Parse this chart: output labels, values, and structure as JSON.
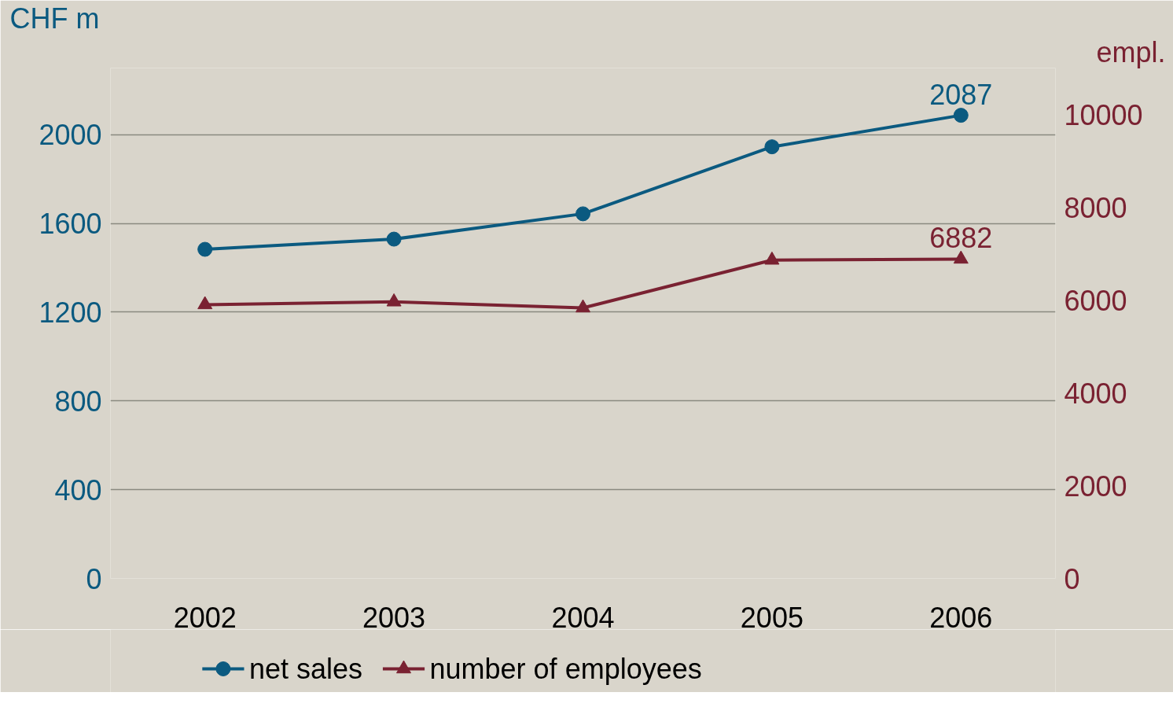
{
  "chart_data": {
    "type": "line",
    "ylabel": "CHF m",
    "y2label": "empl.",
    "categories": [
      "2002",
      "2003",
      "2004",
      "2005",
      "2006"
    ],
    "series": [
      {
        "name": "net sales",
        "color": "#0b5a80",
        "marker": "circle",
        "values": [
          1483,
          1529,
          1643,
          1945,
          2087
        ],
        "value_labels": [
          null,
          null,
          null,
          null,
          "2087"
        ]
      },
      {
        "name": "number of employees",
        "color": "#7a2232",
        "marker": "triangle",
        "axis": "y2",
        "values": [
          5900,
          5960,
          5830,
          6860,
          6882
        ],
        "value_labels": [
          null,
          null,
          null,
          null,
          "6882"
        ]
      }
    ],
    "ylim": [
      0,
      2300
    ],
    "yticks": [
      0,
      400,
      800,
      1200,
      1600,
      2000
    ],
    "y2lim": [
      0,
      11000
    ],
    "y2ticks": [
      0,
      2000,
      4000,
      6000,
      8000,
      10000
    ],
    "grid": "y",
    "legend": "bottom"
  }
}
